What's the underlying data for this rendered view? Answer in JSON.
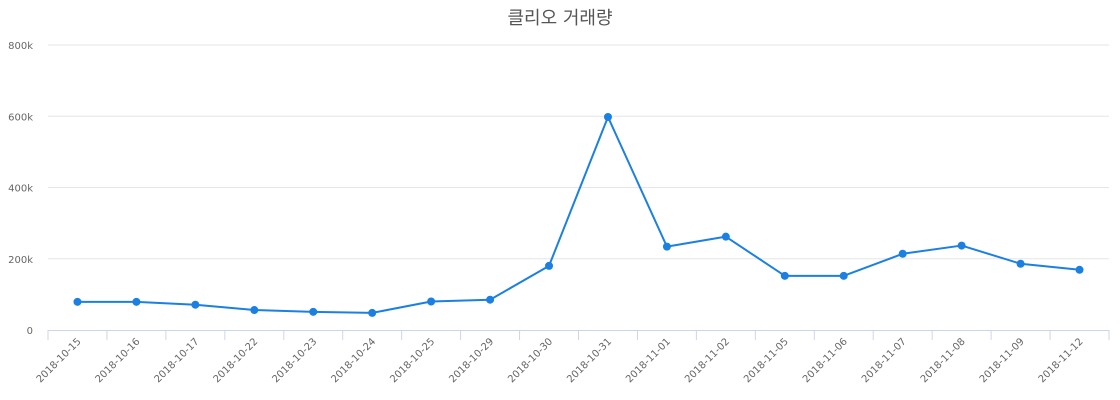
{
  "chart_data": {
    "type": "line",
    "title": "클리오 거래량",
    "xlabel": "",
    "ylabel": "",
    "categories": [
      "2018-10-15",
      "2018-10-16",
      "2018-10-17",
      "2018-10-22",
      "2018-10-23",
      "2018-10-24",
      "2018-10-25",
      "2018-10-29",
      "2018-10-30",
      "2018-10-31",
      "2018-11-01",
      "2018-11-02",
      "2018-11-05",
      "2018-11-06",
      "2018-11-07",
      "2018-11-08",
      "2018-11-09",
      "2018-11-12"
    ],
    "series": [
      {
        "name": "거래량",
        "color": "#1b80e2",
        "values": [
          79000,
          79000,
          71000,
          56000,
          51000,
          48000,
          80000,
          85000,
          180000,
          598000,
          234000,
          262000,
          152000,
          152000,
          214000,
          237000,
          186000,
          169000
        ]
      }
    ],
    "ylim": [
      0,
      800000
    ],
    "yticks": [
      0,
      200000,
      400000,
      600000,
      800000
    ],
    "ytick_labels": [
      "0",
      "200k",
      "400k",
      "600k",
      "800k"
    ],
    "grid": true,
    "legend": "none",
    "colors": {
      "line": "#1b80e2",
      "grid": "#e6e6e6",
      "axis": "#ccd6eb",
      "text": "#666666",
      "title": "#555555"
    }
  }
}
